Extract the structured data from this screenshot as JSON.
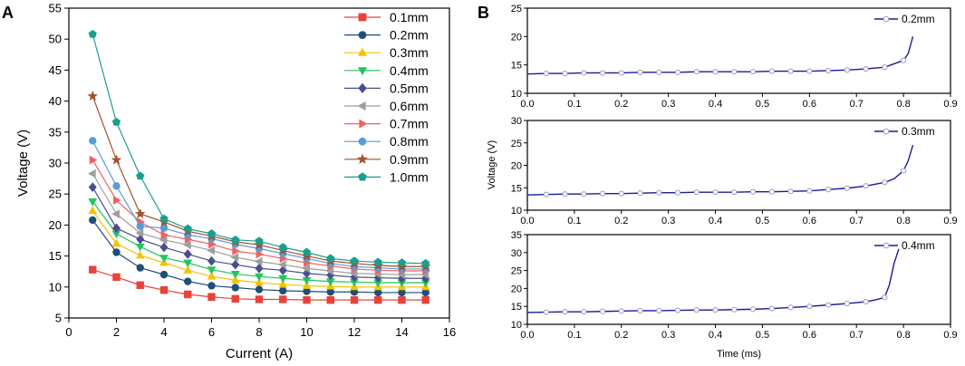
{
  "chart_data": [
    {
      "panel": "A",
      "type": "line",
      "xlabel": "Current (A)",
      "ylabel": "Voltage (V)",
      "xlim": [
        0,
        16
      ],
      "ylim": [
        5,
        55
      ],
      "xticks": [
        0,
        2,
        4,
        6,
        8,
        10,
        12,
        14,
        16
      ],
      "yticks": [
        5,
        10,
        15,
        20,
        25,
        30,
        35,
        40,
        45,
        50,
        55
      ],
      "legend_position": "top-right",
      "x": [
        1,
        2,
        3,
        4,
        5,
        6,
        7,
        8,
        9,
        10,
        11,
        12,
        13,
        14,
        15
      ],
      "series": [
        {
          "name": "0.1mm",
          "color": "#e8433a",
          "marker": "square",
          "values": [
            12.8,
            11.6,
            10.3,
            9.5,
            8.8,
            8.4,
            8.1,
            8.0,
            8.0,
            7.9,
            7.9,
            7.9,
            7.9,
            7.9,
            7.9
          ]
        },
        {
          "name": "0.2mm",
          "color": "#1f4e79",
          "marker": "circle",
          "values": [
            20.8,
            15.6,
            13.1,
            12.0,
            10.9,
            10.2,
            9.9,
            9.6,
            9.4,
            9.3,
            9.2,
            9.2,
            9.1,
            9.1,
            9.1
          ]
        },
        {
          "name": "0.3mm",
          "color": "#f2c400",
          "marker": "triangle-up",
          "values": [
            22.3,
            17.0,
            15.1,
            13.9,
            12.7,
            11.7,
            11.1,
            10.7,
            10.4,
            10.2,
            10.1,
            10.0,
            10.0,
            10.0,
            10.0
          ]
        },
        {
          "name": "0.4mm",
          "color": "#22c55e",
          "marker": "triangle-down",
          "values": [
            23.8,
            18.6,
            16.5,
            14.7,
            13.9,
            12.8,
            12.1,
            11.7,
            11.4,
            11.1,
            10.9,
            10.8,
            10.7,
            10.7,
            10.7
          ]
        },
        {
          "name": "0.5mm",
          "color": "#4a4e8c",
          "marker": "diamond",
          "values": [
            26.1,
            19.5,
            17.7,
            16.4,
            15.3,
            14.2,
            13.6,
            13.0,
            12.7,
            12.2,
            11.9,
            11.6,
            11.5,
            11.4,
            11.4
          ]
        },
        {
          "name": "0.6mm",
          "color": "#9e9e9e",
          "marker": "triangle-left",
          "values": [
            28.3,
            21.8,
            18.7,
            17.6,
            16.8,
            15.9,
            14.8,
            14.1,
            13.6,
            13.0,
            12.6,
            12.2,
            12.1,
            12.0,
            12.0
          ]
        },
        {
          "name": "0.7mm",
          "color": "#f06262",
          "marker": "triangle-right",
          "values": [
            30.5,
            24.0,
            20.5,
            18.4,
            17.7,
            16.9,
            15.8,
            15.3,
            14.6,
            13.9,
            13.4,
            12.9,
            12.7,
            12.6,
            12.6
          ]
        },
        {
          "name": "0.8mm",
          "color": "#5b9bd5",
          "marker": "circle",
          "values": [
            33.6,
            26.3,
            19.8,
            19.5,
            18.4,
            17.8,
            16.9,
            16.2,
            15.4,
            14.6,
            13.8,
            13.3,
            13.1,
            12.9,
            12.9
          ]
        },
        {
          "name": "0.9mm",
          "color": "#a0522d",
          "marker": "star",
          "values": [
            40.8,
            30.5,
            21.8,
            20.5,
            19.0,
            18.2,
            17.3,
            16.8,
            15.9,
            15.0,
            14.2,
            13.8,
            13.5,
            13.3,
            13.3
          ]
        },
        {
          "name": "1.0mm",
          "color": "#1a9e8f",
          "marker": "pentagon",
          "values": [
            50.8,
            36.6,
            27.9,
            21.0,
            19.4,
            18.6,
            17.6,
            17.4,
            16.4,
            15.6,
            14.6,
            14.2,
            14.0,
            13.9,
            13.8
          ]
        }
      ]
    },
    {
      "panel": "B",
      "type": "line",
      "xlabel": "Time (ms)",
      "ylabel": "Voltage (V)",
      "xlim": [
        0,
        0.9
      ],
      "xticks": [
        "0.0",
        "0.1",
        "0.2",
        "0.3",
        "0.4",
        "0.5",
        "0.6",
        "0.7",
        "0.8",
        "0.9"
      ],
      "line_color": "#1a1a9e",
      "subplots": [
        {
          "name": "0.2mm",
          "ylim": [
            10,
            25
          ],
          "yticks": [
            10,
            15,
            20,
            25
          ],
          "legend_position": "top-right",
          "x": [
            0,
            0.04,
            0.08,
            0.12,
            0.16,
            0.2,
            0.24,
            0.28,
            0.32,
            0.36,
            0.4,
            0.44,
            0.48,
            0.52,
            0.56,
            0.6,
            0.64,
            0.68,
            0.72,
            0.76,
            0.78,
            0.8,
            0.81,
            0.82
          ],
          "y": [
            13.4,
            13.5,
            13.5,
            13.6,
            13.6,
            13.6,
            13.7,
            13.7,
            13.7,
            13.8,
            13.8,
            13.8,
            13.8,
            13.9,
            13.9,
            13.9,
            14.0,
            14.1,
            14.3,
            14.6,
            15.2,
            15.8,
            17.0,
            20.0
          ],
          "marker_x": [
            0.04,
            0.08,
            0.12,
            0.16,
            0.2,
            0.24,
            0.28,
            0.32,
            0.36,
            0.4,
            0.44,
            0.48,
            0.52,
            0.56,
            0.6,
            0.64,
            0.68,
            0.72,
            0.76,
            0.8
          ]
        },
        {
          "name": "0.3mm",
          "ylim": [
            10,
            30
          ],
          "yticks": [
            10,
            15,
            20,
            25,
            30
          ],
          "legend_position": "top-right",
          "x": [
            0,
            0.04,
            0.08,
            0.12,
            0.16,
            0.2,
            0.24,
            0.28,
            0.32,
            0.36,
            0.4,
            0.44,
            0.48,
            0.52,
            0.56,
            0.6,
            0.64,
            0.68,
            0.72,
            0.76,
            0.78,
            0.8,
            0.81,
            0.82
          ],
          "y": [
            13.4,
            13.5,
            13.6,
            13.6,
            13.7,
            13.7,
            13.8,
            13.9,
            13.9,
            14.0,
            14.0,
            14.0,
            14.1,
            14.1,
            14.2,
            14.3,
            14.6,
            14.9,
            15.4,
            16.2,
            17.0,
            18.8,
            21.0,
            24.5
          ],
          "marker_x": [
            0.04,
            0.08,
            0.12,
            0.16,
            0.2,
            0.24,
            0.28,
            0.32,
            0.36,
            0.4,
            0.44,
            0.48,
            0.52,
            0.56,
            0.6,
            0.64,
            0.68,
            0.72,
            0.76,
            0.8
          ]
        },
        {
          "name": "0.4mm",
          "ylim": [
            10,
            35
          ],
          "yticks": [
            10,
            15,
            20,
            25,
            30,
            35
          ],
          "legend_position": "top-right",
          "x": [
            0,
            0.04,
            0.08,
            0.12,
            0.16,
            0.2,
            0.24,
            0.28,
            0.32,
            0.36,
            0.4,
            0.44,
            0.48,
            0.52,
            0.56,
            0.6,
            0.64,
            0.68,
            0.72,
            0.74,
            0.76,
            0.77,
            0.78,
            0.79
          ],
          "y": [
            13.3,
            13.4,
            13.5,
            13.5,
            13.6,
            13.7,
            13.8,
            13.8,
            13.9,
            14.0,
            14.0,
            14.1,
            14.2,
            14.4,
            14.7,
            15.0,
            15.4,
            15.8,
            16.3,
            16.8,
            17.5,
            21.0,
            27.0,
            31.0
          ],
          "marker_x": [
            0.04,
            0.08,
            0.12,
            0.16,
            0.2,
            0.24,
            0.28,
            0.32,
            0.36,
            0.4,
            0.44,
            0.48,
            0.52,
            0.56,
            0.6,
            0.64,
            0.68,
            0.72,
            0.76
          ]
        }
      ]
    }
  ],
  "labels": {
    "panel_a": "A",
    "panel_b": "B"
  }
}
